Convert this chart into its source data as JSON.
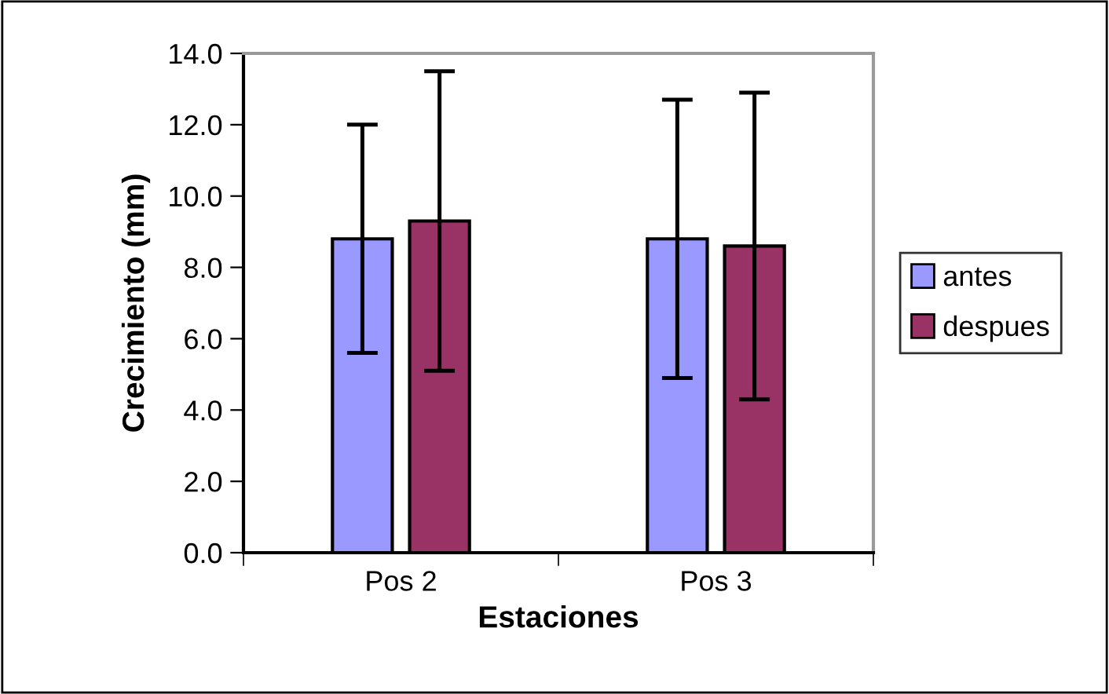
{
  "chart_data": {
    "type": "bar",
    "xlabel": "Estaciones",
    "ylabel": "Crecimiento (mm)",
    "categories": [
      "Pos 2",
      "Pos 3"
    ],
    "series": [
      {
        "name": "antes",
        "color": "#9999ff",
        "values": [
          8.8,
          8.8
        ],
        "errors": [
          3.2,
          3.9
        ]
      },
      {
        "name": "despues",
        "color": "#993366",
        "values": [
          9.3,
          8.6
        ],
        "errors": [
          4.2,
          4.3
        ]
      }
    ],
    "ylim": [
      0,
      14
    ],
    "yticks": [
      {
        "value": 0,
        "label": "0.0"
      },
      {
        "value": 2,
        "label": "2.0"
      },
      {
        "value": 4,
        "label": "4.0"
      },
      {
        "value": 6,
        "label": "6.0"
      },
      {
        "value": 8,
        "label": "8.0"
      },
      {
        "value": 10,
        "label": "10.0"
      },
      {
        "value": 12,
        "label": "12.0"
      },
      {
        "value": 14,
        "label": "14.0"
      }
    ],
    "grid": false,
    "legend": "right"
  }
}
